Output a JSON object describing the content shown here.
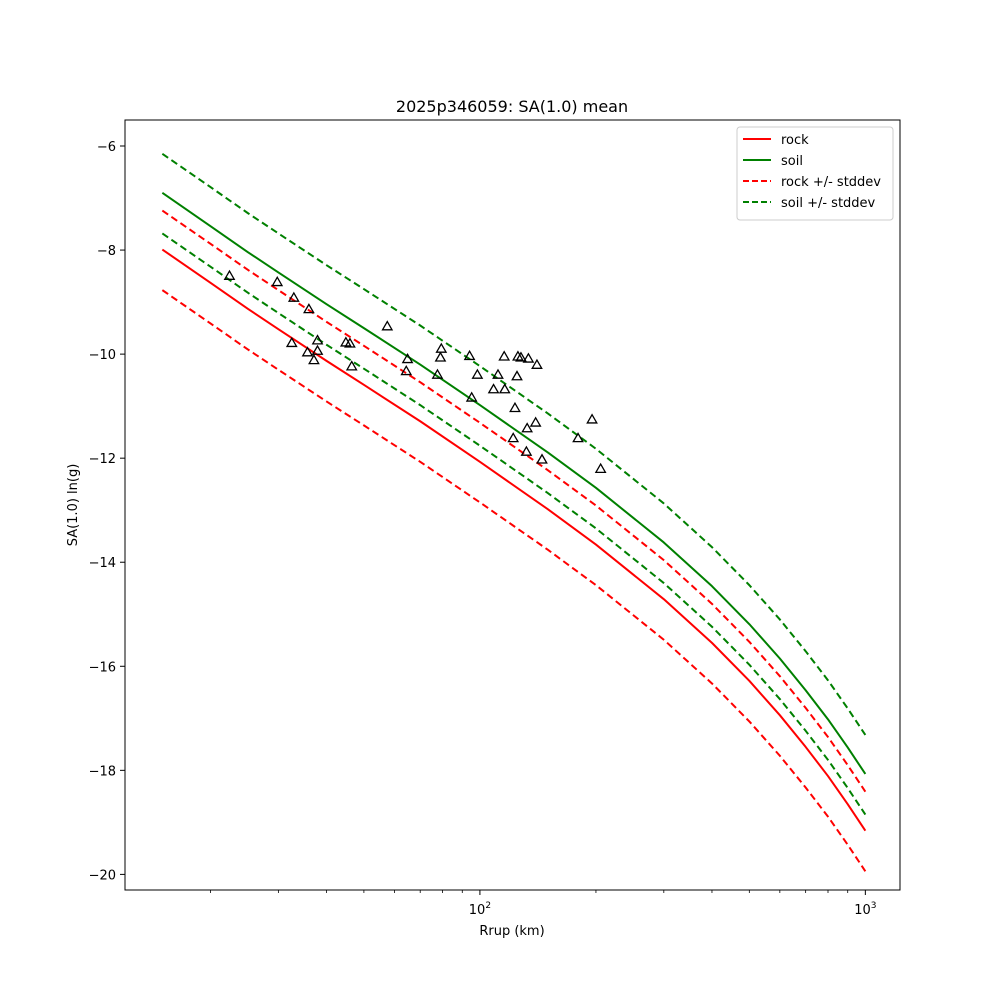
{
  "chart_data": {
    "type": "line",
    "title": "2025p346059: SA(1.0) mean",
    "xlabel": "Rrup (km)",
    "ylabel": "SA(1.0) ln(g)",
    "xscale": "log",
    "xlim": [
      12.0,
      1230.0
    ],
    "ylim": [
      -20.3,
      -5.5
    ],
    "x_ticks": [
      {
        "value": 100,
        "base": "10",
        "exp": "2"
      },
      {
        "value": 1000,
        "base": "10",
        "exp": "3"
      }
    ],
    "y_ticks": [
      {
        "value": -6,
        "label": "−6"
      },
      {
        "value": -8,
        "label": "−8"
      },
      {
        "value": -10,
        "label": "−10"
      },
      {
        "value": -12,
        "label": "−12"
      },
      {
        "value": -14,
        "label": "−14"
      },
      {
        "value": -16,
        "label": "−16"
      },
      {
        "value": -18,
        "label": "−18"
      },
      {
        "value": -20,
        "label": "−20"
      }
    ],
    "grid": false,
    "legend_position": "top-right",
    "series": [
      {
        "name": "rock",
        "color": "#ff0000",
        "style": "solid",
        "x": [
          15,
          20,
          25,
          30,
          40,
          50,
          70,
          100,
          150,
          200,
          300,
          400,
          500,
          600,
          700,
          800,
          900,
          1000
        ],
        "y": [
          -7.99,
          -8.63,
          -9.13,
          -9.52,
          -10.13,
          -10.59,
          -11.29,
          -12.07,
          -12.98,
          -13.66,
          -14.71,
          -15.55,
          -16.28,
          -16.94,
          -17.55,
          -18.11,
          -18.65,
          -19.16
        ]
      },
      {
        "name": "soil",
        "color": "#008000",
        "style": "solid",
        "x": [
          15,
          20,
          25,
          30,
          40,
          50,
          70,
          100,
          150,
          200,
          300,
          400,
          500,
          600,
          700,
          800,
          900,
          1000
        ],
        "y": [
          -6.9,
          -7.54,
          -8.04,
          -8.43,
          -9.04,
          -9.5,
          -10.2,
          -10.98,
          -11.89,
          -12.57,
          -13.62,
          -14.46,
          -15.19,
          -15.85,
          -16.46,
          -17.02,
          -17.56,
          -18.07
        ]
      },
      {
        "name": "rock +/- stddev",
        "color": "#ff0000",
        "style": "dashed",
        "x": [
          15,
          20,
          25,
          30,
          40,
          50,
          70,
          100,
          150,
          200,
          300,
          400,
          500,
          600,
          700,
          800,
          900,
          1000
        ],
        "y": [
          -7.24,
          -7.88,
          -8.38,
          -8.77,
          -9.38,
          -9.84,
          -10.54,
          -11.32,
          -12.23,
          -12.91,
          -13.96,
          -14.8,
          -15.53,
          -16.19,
          -16.8,
          -17.36,
          -17.9,
          -18.41
        ]
      },
      {
        "name": "",
        "color": "#ff0000",
        "style": "dashed",
        "x": [
          15,
          20,
          25,
          30,
          40,
          50,
          70,
          100,
          150,
          200,
          300,
          400,
          500,
          600,
          700,
          800,
          900,
          1000
        ],
        "y": [
          -8.77,
          -9.41,
          -9.91,
          -10.3,
          -10.91,
          -11.37,
          -12.07,
          -12.85,
          -13.76,
          -14.44,
          -15.49,
          -16.33,
          -17.06,
          -17.72,
          -18.33,
          -18.89,
          -19.43,
          -19.94
        ]
      },
      {
        "name": "soil +/- stddev",
        "color": "#008000",
        "style": "dashed",
        "x": [
          15,
          20,
          25,
          30,
          40,
          50,
          70,
          100,
          150,
          200,
          300,
          400,
          500,
          600,
          700,
          800,
          900,
          1000
        ],
        "y": [
          -6.15,
          -6.79,
          -7.29,
          -7.68,
          -8.29,
          -8.75,
          -9.45,
          -10.23,
          -11.14,
          -11.82,
          -12.87,
          -13.71,
          -14.44,
          -15.1,
          -15.71,
          -16.27,
          -16.81,
          -17.32
        ]
      },
      {
        "name": "",
        "color": "#008000",
        "style": "dashed",
        "x": [
          15,
          20,
          25,
          30,
          40,
          50,
          70,
          100,
          150,
          200,
          300,
          400,
          500,
          600,
          700,
          800,
          900,
          1000
        ],
        "y": [
          -7.68,
          -8.32,
          -8.82,
          -9.21,
          -9.82,
          -10.28,
          -10.98,
          -11.76,
          -12.67,
          -13.35,
          -14.4,
          -15.24,
          -15.97,
          -16.63,
          -17.24,
          -17.8,
          -18.34,
          -18.85
        ]
      }
    ],
    "observations": {
      "marker": "triangle-open",
      "color": "#000000",
      "x": [
        22.4,
        29.8,
        32.9,
        36.0,
        32.5,
        35.7,
        37.1,
        37.9,
        37.9,
        44.9,
        46.0,
        46.5,
        57.5,
        64.9,
        64.4,
        77.6,
        79.4,
        79.0,
        94.0,
        95.2,
        98.5,
        108.5,
        111.4,
        115.6,
        116.0,
        122.0,
        125.5,
        123.3,
        124.8,
        127.8,
        133.6,
        132.0,
        132.6,
        139.5,
        140.6,
        144.9,
        179.7,
        195.4,
        205.7
      ],
      "y": [
        -8.5,
        -8.62,
        -8.92,
        -9.14,
        -9.79,
        -9.97,
        -10.12,
        -9.74,
        -9.94,
        -9.78,
        -9.8,
        -10.24,
        -9.47,
        -10.1,
        -10.33,
        -10.4,
        -9.9,
        -10.07,
        -10.04,
        -10.84,
        -10.4,
        -10.68,
        -10.4,
        -10.05,
        -10.68,
        -11.62,
        -10.05,
        -11.04,
        -10.43,
        -10.07,
        -10.09,
        -11.88,
        -11.43,
        -11.32,
        -10.21,
        -12.03,
        -11.62,
        -11.26,
        -12.21
      ]
    }
  }
}
